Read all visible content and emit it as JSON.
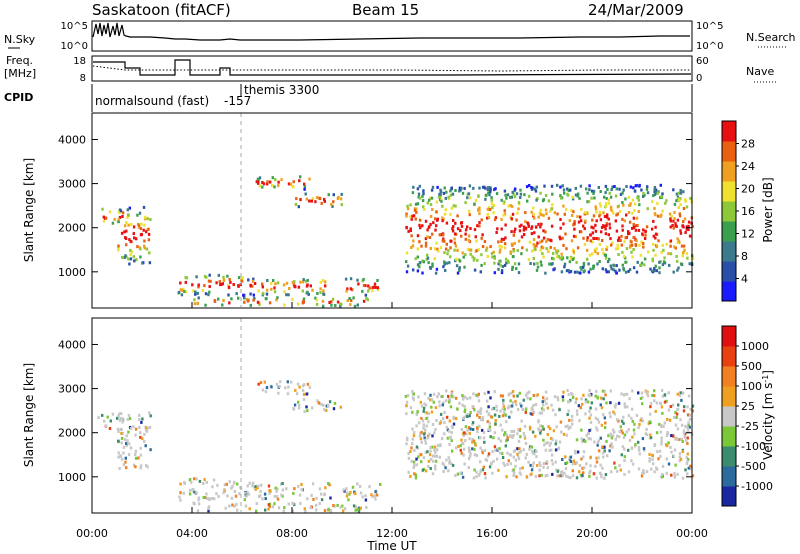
{
  "header": {
    "site": "Saskatoon (fitACF)",
    "beam": "Beam 15",
    "date": "24/Mar/2009"
  },
  "panels": {
    "nsky": {
      "left_label": "N.Sky",
      "left_ticks": [
        "10^5",
        "10^0"
      ],
      "right_ticks": [
        "10^5",
        "10^0"
      ],
      "right_label": "N.Search"
    },
    "freq": {
      "label_line1": "Freq.",
      "label_line2": "[MHz]",
      "left_ticks": [
        "18",
        "8"
      ],
      "right_ticks": [
        "60",
        "0"
      ],
      "right_label": "Nave"
    },
    "cpid": {
      "label": "CPID",
      "modes": [
        "normalsound (fast)",
        "-157",
        "themis 3300"
      ]
    }
  },
  "chart_data": [
    {
      "type": "heatmap",
      "ylabel": "Slant Range [km]",
      "ylim": [
        180,
        4600
      ],
      "yticks": [
        1000,
        2000,
        3000,
        4000
      ],
      "xlim": [
        0,
        24
      ],
      "colorbar": {
        "label": "Power [dB]",
        "ticks": [
          "28",
          "24",
          "20",
          "16",
          "12",
          "8",
          "4"
        ],
        "colors": [
          "#1a1aff",
          "#2a4fa8",
          "#3a7a8c",
          "#3aa050",
          "#8cc838",
          "#f0e030",
          "#f0a020",
          "#e86010",
          "#e81010"
        ]
      },
      "echo_regions": [
        {
          "t": [
            0.2,
            1.2
          ],
          "r": [
            2100,
            2500
          ]
        },
        {
          "t": [
            1.0,
            2.3
          ],
          "r": [
            1200,
            2500
          ]
        },
        {
          "t": [
            3.4,
            6.0
          ],
          "r": [
            500,
            1000
          ]
        },
        {
          "t": [
            4.0,
            11.0
          ],
          "r": [
            250,
            450
          ]
        },
        {
          "t": [
            6.0,
            9.5
          ],
          "r": [
            500,
            900
          ]
        },
        {
          "t": [
            6.5,
            8.8
          ],
          "r": [
            2900,
            3200
          ]
        },
        {
          "t": [
            8.0,
            10.0
          ],
          "r": [
            2500,
            2800
          ]
        },
        {
          "t": [
            10.0,
            11.5
          ],
          "r": [
            500,
            900
          ]
        },
        {
          "t": [
            12.5,
            24.0
          ],
          "r": [
            1000,
            3000
          ]
        }
      ]
    },
    {
      "type": "heatmap",
      "ylabel": "Slant Range [km]",
      "ylim": [
        180,
        4600
      ],
      "yticks": [
        1000,
        2000,
        3000,
        4000
      ],
      "xlabel": "Time UT",
      "xticks": [
        "00:00",
        "04:00",
        "08:00",
        "12:00",
        "16:00",
        "20:00",
        "00:00"
      ],
      "xlim": [
        0,
        24
      ],
      "colorbar": {
        "label": "Velocity [m s^-1]",
        "ticks": [
          "1000",
          "500",
          "100",
          "25",
          "-25",
          "-100",
          "-500",
          "-1000"
        ],
        "colors": [
          "#1a28a0",
          "#2a6a9c",
          "#3a8c6c",
          "#7ac838",
          "#c8c8c8",
          "#f0a020",
          "#f08020",
          "#e84010",
          "#e01010"
        ]
      },
      "echo_regions": [
        {
          "t": [
            0.2,
            1.2
          ],
          "r": [
            2100,
            2500
          ]
        },
        {
          "t": [
            1.0,
            2.3
          ],
          "r": [
            1200,
            2500
          ]
        },
        {
          "t": [
            3.4,
            6.0
          ],
          "r": [
            500,
            1000
          ]
        },
        {
          "t": [
            4.0,
            11.0
          ],
          "r": [
            250,
            450
          ]
        },
        {
          "t": [
            6.0,
            9.5
          ],
          "r": [
            500,
            900
          ]
        },
        {
          "t": [
            6.5,
            8.8
          ],
          "r": [
            2900,
            3200
          ]
        },
        {
          "t": [
            8.0,
            10.0
          ],
          "r": [
            2500,
            2800
          ]
        },
        {
          "t": [
            10.0,
            11.5
          ],
          "r": [
            500,
            900
          ]
        },
        {
          "t": [
            12.5,
            24.0
          ],
          "r": [
            1000,
            3000
          ]
        }
      ]
    }
  ]
}
